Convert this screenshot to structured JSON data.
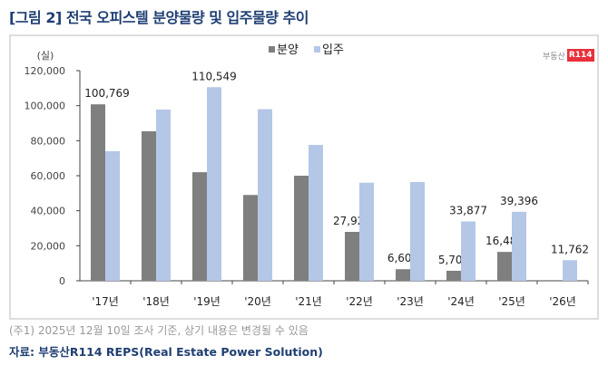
{
  "title": "[그림 2] 전국 오피스텔 분양물량 및 입주물량 추이",
  "note": "(주1) 2025년 12월 10일 조사 기준, 상기 내용은 변경될 수 있음",
  "source": "자료: 부동산R114 REPS(Real Estate Power Solution)",
  "logo": {
    "text": "부동산",
    "badge": "R114"
  },
  "chart_data": {
    "type": "bar",
    "ylabel": "(실)",
    "ylim": [
      0,
      120000
    ],
    "yticks": [
      "0",
      "20,000",
      "40,000",
      "60,000",
      "80,000",
      "100,000",
      "120,000"
    ],
    "legend_position": "top-center",
    "categories": [
      "'17년",
      "'18년",
      "'19년",
      "'20년",
      "'21년",
      "'22년",
      "'23년",
      "'24년",
      "'25년",
      "'26년"
    ],
    "series": [
      {
        "name": "분양",
        "color": "#7f7f7f",
        "values": [
          100769,
          85400,
          62000,
          49000,
          60000,
          27926,
          6605,
          5707,
          16483,
          null
        ],
        "labels": [
          "100,769",
          "",
          "",
          "",
          "",
          "27,926",
          "6,605",
          "5,707",
          "16,483",
          ""
        ]
      },
      {
        "name": "입주",
        "color": "#b4c7e7",
        "values": [
          74000,
          97800,
          110549,
          98000,
          77600,
          56000,
          56400,
          33877,
          39396,
          11762
        ],
        "labels": [
          "",
          "",
          "110,549",
          "",
          "",
          "",
          "",
          "33,877",
          "39,396",
          "11,762"
        ]
      }
    ]
  }
}
